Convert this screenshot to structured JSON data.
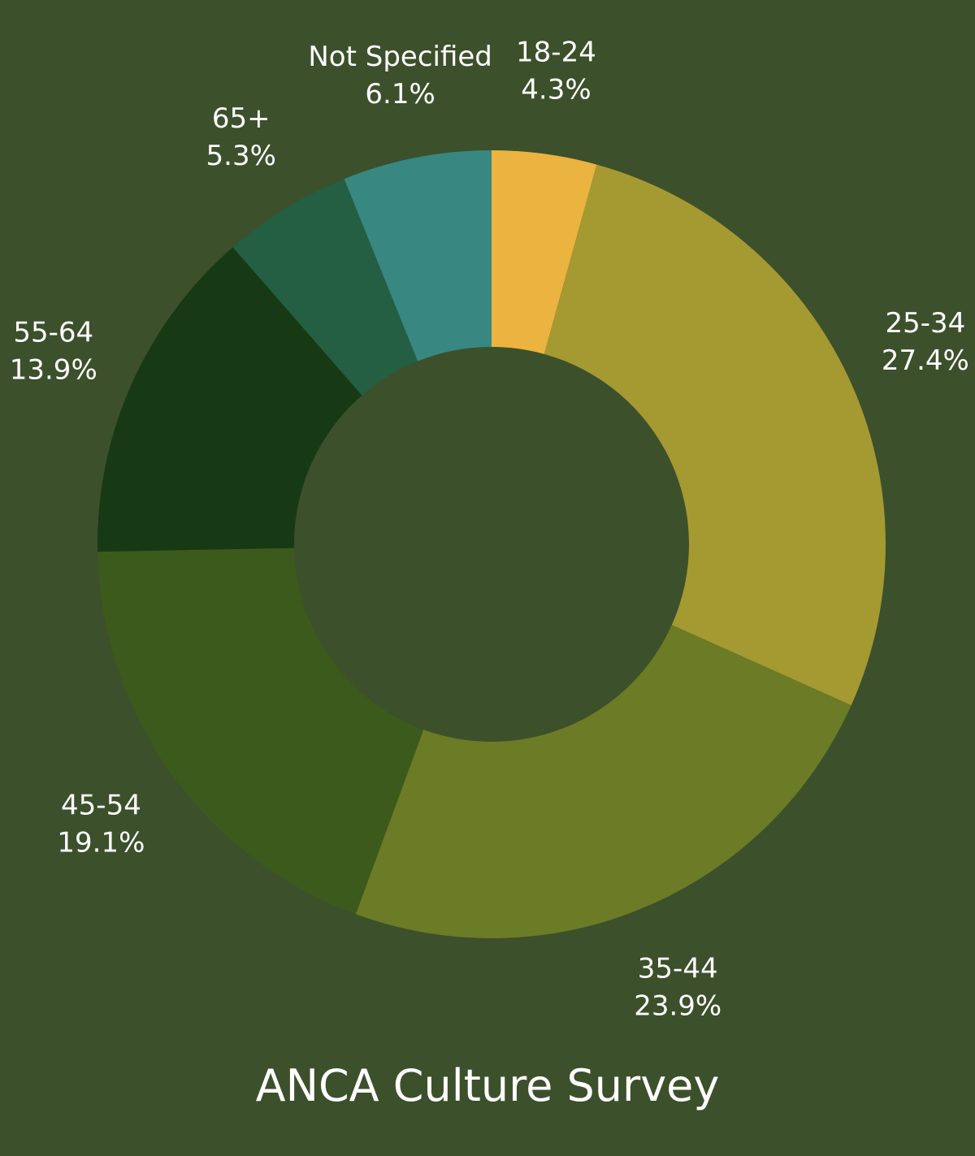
{
  "chart_data": {
    "type": "pie",
    "title": "ANCA Culture Survey",
    "donut": true,
    "categories": [
      "18-24",
      "25-34",
      "35-44",
      "45-54",
      "55-64",
      "65+",
      "Not Specified"
    ],
    "values": [
      4.3,
      27.4,
      23.9,
      19.1,
      13.9,
      5.3,
      6.1
    ],
    "value_labels": [
      "4.3%",
      "27.4%",
      "23.9%",
      "19.1%",
      "13.9%",
      "5.3%",
      "6.1%"
    ],
    "colors": [
      "#ebb33f",
      "#a59932",
      "#6b7b26",
      "#3c5a1b",
      "#173a15",
      "#245e43",
      "#388781"
    ],
    "background": "#3c502b",
    "legend": "none"
  }
}
